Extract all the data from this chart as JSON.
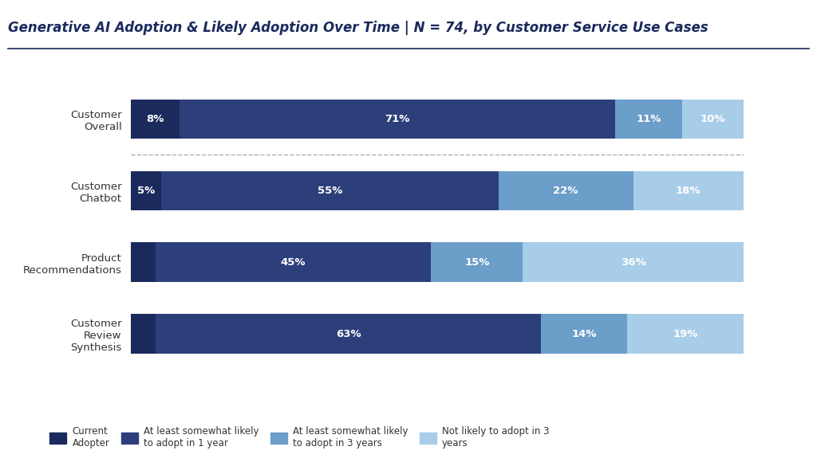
{
  "title_part1": "Generative AI Adoption & Likely Adoption Over Time | ",
  "title_part2": "N",
  "title_part3": " = 74, ",
  "title_part4": "by Customer Service Use Cases",
  "categories": [
    "Customer\nOverall",
    "Customer\nChatbot",
    "Product\nRecommendations",
    "Customer\nReview\nSynthesis"
  ],
  "series_keys": [
    "Current Adopter",
    "At least somewhat likely to adopt in 1 year",
    "At least somewhat likely to adopt in 3 years",
    "Not likely to adopt in 3 years"
  ],
  "series_values": [
    [
      8,
      5,
      4,
      4
    ],
    [
      71,
      55,
      45,
      63
    ],
    [
      11,
      22,
      15,
      14
    ],
    [
      10,
      18,
      36,
      19
    ]
  ],
  "colors": [
    "#1b2a5c",
    "#2d3f7b",
    "#6b9ec8",
    "#a8cde8"
  ],
  "legend_labels": [
    "Current\nAdopter",
    "At least somewhat likely\nto adopt in 1 year",
    "At least somewhat likely\nto adopt in 3 years",
    "Not likely to adopt in 3\nyears"
  ],
  "background_color": "#ffffff",
  "title_color": "#1b2a5c",
  "title_fontsize": 12,
  "bar_height": 0.55,
  "fig_width": 10.24,
  "fig_height": 5.8,
  "label_min_val": 5
}
